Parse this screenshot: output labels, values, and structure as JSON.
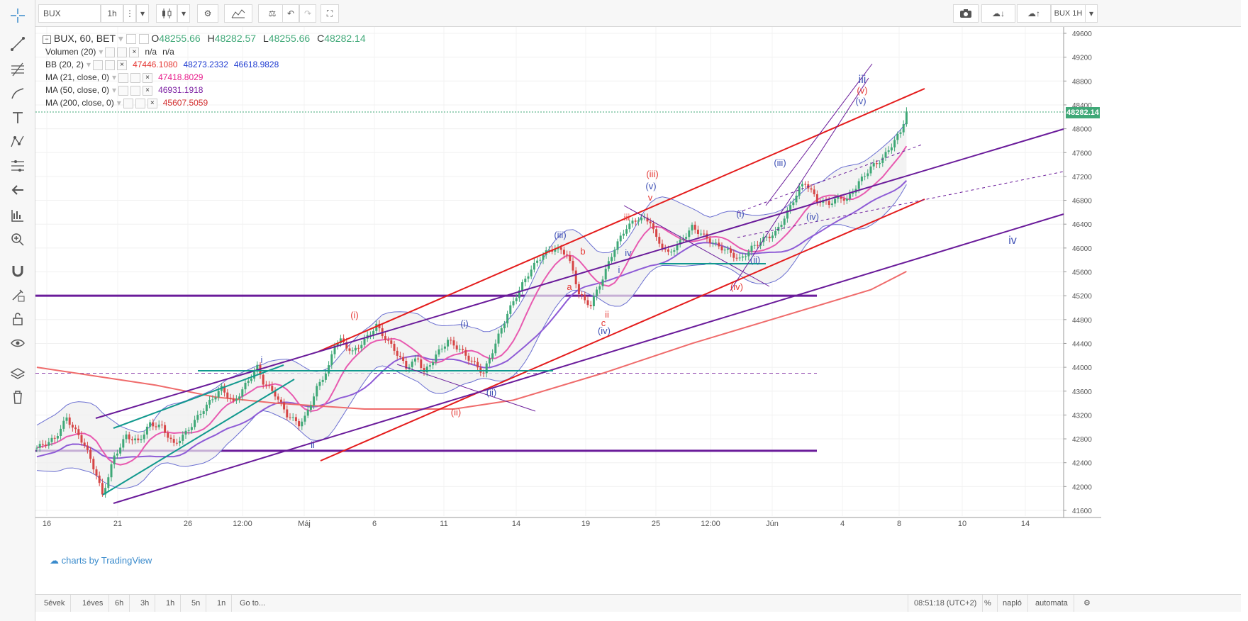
{
  "toolbar": {
    "symbol": "BUX",
    "interval": "1h",
    "right_label": "BUX 1H"
  },
  "status": {
    "title": "BUX, 60, BET",
    "o_label": "O",
    "o_value": "48255.66",
    "h_label": "H",
    "h_value": "48282.57",
    "l_label": "L",
    "l_value": "48255.66",
    "c_label": "C",
    "c_value": "48282.14"
  },
  "indicators": [
    {
      "name": "Volumen (20)",
      "values": [
        "n/a",
        "n/a"
      ],
      "colors": [
        "#333333",
        "#333333"
      ]
    },
    {
      "name": "BB (20, 2)",
      "values": [
        "47446.1080",
        "48273.2332",
        "46618.9828"
      ],
      "colors": [
        "#e53935",
        "#1e3bd1",
        "#1e3bd1"
      ]
    },
    {
      "name": "MA (21, close, 0)",
      "values": [
        "47418.8029"
      ],
      "colors": [
        "#e91e8c"
      ]
    },
    {
      "name": "MA (50, close, 0)",
      "values": [
        "46931.1918"
      ],
      "colors": [
        "#7b1fa2"
      ]
    },
    {
      "name": "MA (200, close, 0)",
      "values": [
        "45607.5059"
      ],
      "colors": [
        "#d32f2f"
      ]
    }
  ],
  "watermark": "charts by TradingView",
  "last_price": "48282.14",
  "bottom": {
    "ranges": [
      "5évek",
      "1éves",
      "6h",
      "3h",
      "1h",
      "5n",
      "1n",
      "Go to..."
    ],
    "time": "08:51:18 (UTC+2)",
    "percent": "%",
    "log": "napló",
    "auto": "automata"
  },
  "colors": {
    "up": "#3fa877",
    "down": "#d64545",
    "channel_red": "#e41c1c",
    "channel_purple": "#6a1b9a",
    "teal": "#11998e",
    "wave_blue": "#3f51b5",
    "wave_red": "#e53935"
  },
  "chart_data": {
    "type": "candlestick",
    "y_axis": {
      "ticks": [
        49600,
        49200,
        48800,
        48400,
        48000,
        47600,
        47200,
        46800,
        46400,
        46000,
        45600,
        45200,
        44800,
        44400,
        44000,
        43600,
        43200,
        42800,
        42400,
        42000,
        41600
      ],
      "range": [
        41600,
        49600
      ]
    },
    "x_ticks": [
      "16",
      "21",
      "26",
      "12:00",
      "Máj",
      "6",
      "11",
      "14",
      "19",
      "25",
      "12:00",
      "Jún",
      "4",
      "8",
      "10",
      "14"
    ],
    "price_path": [
      [
        0,
        42650
      ],
      [
        3,
        42800
      ],
      [
        5,
        43150
      ],
      [
        8,
        42700
      ],
      [
        10,
        42200
      ],
      [
        11,
        41850
      ],
      [
        13,
        42500
      ],
      [
        15,
        42850
      ],
      [
        17,
        42750
      ],
      [
        19,
        43050
      ],
      [
        21,
        43000
      ],
      [
        23,
        42700
      ],
      [
        25,
        42900
      ],
      [
        28,
        43300
      ],
      [
        31,
        43650
      ],
      [
        33,
        43400
      ],
      [
        35,
        43700
      ],
      [
        37,
        44000
      ],
      [
        38,
        43750
      ],
      [
        40,
        43550
      ],
      [
        42,
        43200
      ],
      [
        44,
        43050
      ],
      [
        45,
        43150
      ],
      [
        47,
        43650
      ],
      [
        49,
        44000
      ],
      [
        50,
        44400
      ],
      [
        51,
        44450
      ],
      [
        53,
        44250
      ],
      [
        55,
        44450
      ],
      [
        57,
        44700
      ],
      [
        58,
        44550
      ],
      [
        60,
        44300
      ],
      [
        62,
        44000
      ],
      [
        64,
        44150
      ],
      [
        65,
        43900
      ],
      [
        67,
        44200
      ],
      [
        69,
        44450
      ],
      [
        71,
        44300
      ],
      [
        73,
        44100
      ],
      [
        75,
        43900
      ],
      [
        77,
        44400
      ],
      [
        79,
        44900
      ],
      [
        81,
        45300
      ],
      [
        83,
        45650
      ],
      [
        85,
        45900
      ],
      [
        87,
        46000
      ],
      [
        89,
        45900
      ],
      [
        90,
        45600
      ],
      [
        91,
        45250
      ],
      [
        92,
        45100
      ],
      [
        93,
        45050
      ],
      [
        95,
        45500
      ],
      [
        97,
        46000
      ],
      [
        99,
        46350
      ],
      [
        101,
        46500
      ],
      [
        103,
        46450
      ],
      [
        104,
        46150
      ],
      [
        106,
        45900
      ],
      [
        108,
        46100
      ],
      [
        110,
        46350
      ],
      [
        112,
        46200
      ],
      [
        114,
        46050
      ],
      [
        116,
        45950
      ],
      [
        118,
        45800
      ],
      [
        120,
        46000
      ],
      [
        122,
        46150
      ],
      [
        124,
        46250
      ],
      [
        126,
        46600
      ],
      [
        128,
        47000
      ],
      [
        129,
        47100
      ],
      [
        130,
        46950
      ],
      [
        131,
        46800
      ],
      [
        133,
        46750
      ],
      [
        135,
        46850
      ],
      [
        136,
        46800
      ],
      [
        138,
        47100
      ],
      [
        140,
        47350
      ],
      [
        142,
        47500
      ],
      [
        144,
        47800
      ],
      [
        145,
        47950
      ],
      [
        146,
        48282
      ]
    ],
    "ma200": [
      [
        0,
        44000
      ],
      [
        10,
        43850
      ],
      [
        20,
        43700
      ],
      [
        30,
        43500
      ],
      [
        40,
        43400
      ],
      [
        55,
        43300
      ],
      [
        70,
        43300
      ],
      [
        80,
        43450
      ],
      [
        95,
        43900
      ],
      [
        110,
        44400
      ],
      [
        125,
        44850
      ],
      [
        140,
        45300
      ],
      [
        146,
        45607
      ]
    ],
    "horizontal_levels": [
      45200,
      42600,
      43900
    ],
    "wave_labels": [
      {
        "text": "i",
        "color": "#3f51b5"
      },
      {
        "text": "ii",
        "color": "#3f51b5"
      },
      {
        "text": "(i)",
        "color": "#e53935"
      },
      {
        "text": "(ii)",
        "color": "#e53935"
      },
      {
        "text": "(i)",
        "color": "#3f51b5"
      },
      {
        "text": "(ii)",
        "color": "#3f51b5"
      },
      {
        "text": "(iii)",
        "color": "#3f51b5"
      },
      {
        "text": "a",
        "color": "#e53935"
      },
      {
        "text": "b",
        "color": "#e53935"
      },
      {
        "text": "c",
        "color": "#e53935"
      },
      {
        "text": "ii",
        "color": "#e53935"
      },
      {
        "text": "(iv)",
        "color": "#3f51b5"
      },
      {
        "text": "i",
        "color": "#3f51b5"
      },
      {
        "text": "iii",
        "color": "#e53935"
      },
      {
        "text": "iv",
        "color": "#3f51b5"
      },
      {
        "text": "v",
        "color": "#e53935"
      },
      {
        "text": "(v)",
        "color": "#3f51b5"
      },
      {
        "text": "(iii)",
        "color": "#e53935"
      },
      {
        "text": "(iv)",
        "color": "#e53935"
      },
      {
        "text": "(i)",
        "color": "#3f51b5"
      },
      {
        "text": "(ii)",
        "color": "#3f51b5"
      },
      {
        "text": "(iii)",
        "color": "#3f51b5"
      },
      {
        "text": "(iv)",
        "color": "#3f51b5"
      },
      {
        "text": "(v)",
        "color": "#3f51b5"
      },
      {
        "text": "(v)",
        "color": "#e53935"
      },
      {
        "text": "iii",
        "color": "#3f51b5"
      },
      {
        "text": "iv",
        "color": "#3f51b5"
      }
    ]
  }
}
